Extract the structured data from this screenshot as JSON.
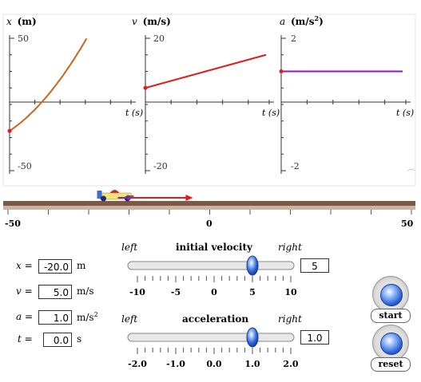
{
  "graphs": [
    {
      "id": "x",
      "symbol": "x",
      "unit": "(m)",
      "superscript": "",
      "max_label": "50",
      "min_label": "-50",
      "taxis_label": "t (s)",
      "color": "#c8661c"
    },
    {
      "id": "v",
      "symbol": "v",
      "unit": "(m/s",
      "superscript": "",
      "unit_close": ")",
      "max_label": "20",
      "min_label": "-20",
      "taxis_label": "t (s)",
      "color": "#e21b1b"
    },
    {
      "id": "a",
      "symbol": "a",
      "unit": "(m/s",
      "superscript": "2",
      "unit_close": ")",
      "max_label": "2",
      "min_label": "-2",
      "taxis_label": "t (s)",
      "color": "#8a18b8"
    }
  ],
  "plot_data": {
    "x_curve": {
      "t_range": [
        0,
        10
      ],
      "x0": -20,
      "v0": 5,
      "a": 1,
      "y_range": [
        -50,
        50
      ]
    },
    "v_curve": {
      "t_range": [
        0,
        10
      ],
      "v0": 5,
      "a": 1,
      "y_range": [
        -20,
        20
      ]
    },
    "a_curve": {
      "t_range": [
        0,
        10
      ],
      "a": 1,
      "y_range": [
        -2,
        2
      ]
    }
  },
  "track": {
    "min_label": "-50",
    "zero_label": "0",
    "max_label": "50",
    "car_position_m": -20,
    "velocity_arrow": 5,
    "accel_arrow": 1
  },
  "readouts": {
    "x": {
      "label": "x",
      "value": "-20.0",
      "unit": "m",
      "unit_sup": ""
    },
    "v": {
      "label": "v",
      "value": "5.0",
      "unit": "m/s",
      "unit_sup": ""
    },
    "a": {
      "label": "a",
      "value": "1.0",
      "unit": "m/s",
      "unit_sup": "2"
    },
    "t": {
      "label": "t",
      "value": "0.0",
      "unit": "s",
      "unit_sup": ""
    }
  },
  "velocity_slider": {
    "left_label": "left",
    "title": "initial velocity",
    "right_label": "right",
    "value": "5",
    "value_num": 5,
    "range": [
      -10,
      10
    ],
    "tick_labels": [
      "-10",
      "-5",
      "0",
      "5",
      "10"
    ]
  },
  "accel_slider": {
    "left_label": "left",
    "title": "acceleration",
    "right_label": "right",
    "value": "1.0",
    "value_num": 1,
    "range": [
      -2,
      2
    ],
    "tick_labels": [
      "-2.0",
      "-1.0",
      "0.0",
      "1.0",
      "2.0"
    ]
  },
  "buttons": {
    "start": "start",
    "reset": "reset"
  }
}
